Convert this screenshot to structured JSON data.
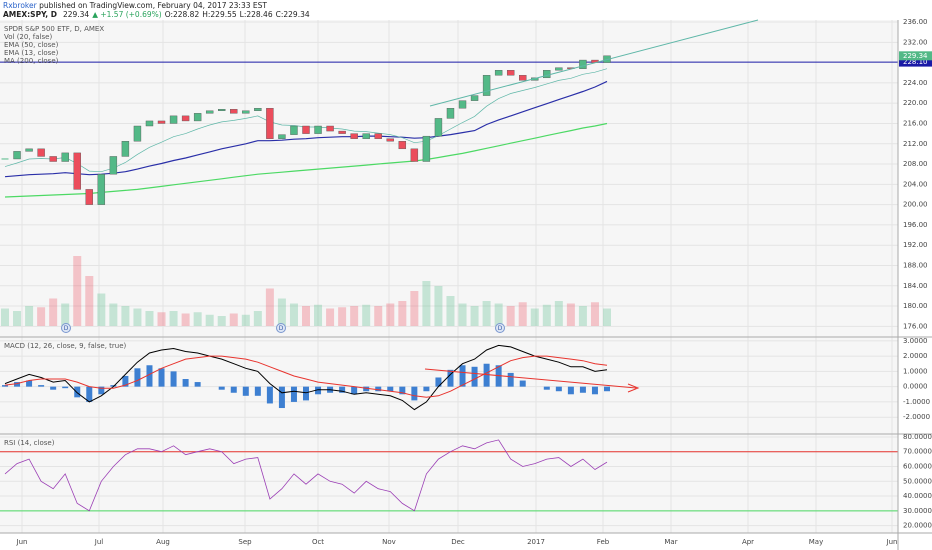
{
  "header": {
    "author": "Rxbroker",
    "published": " published on TradingView.com, February 04, 2017 23:33 EST",
    "symbol": "AMEX:SPY, D",
    "last": "229.34",
    "change": "▲ +1.57 (+0.69%)",
    "open": "O:228.82",
    "high": "H:229.55",
    "low": "L:228.46",
    "close": "C:229.34"
  },
  "months": [
    "Jun",
    "Jul",
    "Aug",
    "Sep",
    "Oct",
    "Nov",
    "Dec",
    "2017",
    "Feb",
    "Mar",
    "Apr",
    "May",
    "Jun"
  ],
  "chart_data": [
    {
      "type": "candlestick",
      "title": "SPDR S&P 500 ETF, D, AMEX",
      "close": [
        209.0,
        210.5,
        211.0,
        209.5,
        208.5,
        210.2,
        203.0,
        200.0,
        206.0,
        209.5,
        212.5,
        215.5,
        216.5,
        216.0,
        217.5,
        216.5,
        218.0,
        218.5,
        218.8,
        218.0,
        218.5,
        219.0,
        213.0,
        213.8,
        215.5,
        214.0,
        215.5,
        214.5,
        214.0,
        213.0,
        214.0,
        213.0,
        212.5,
        211.0,
        208.5,
        213.5,
        217.0,
        219.0,
        220.5,
        221.5,
        225.5,
        226.5,
        225.5,
        224.5,
        225.0,
        226.5,
        227.0,
        226.8,
        228.5,
        228.0,
        229.34
      ],
      "up_color": "#53b987",
      "down_color": "#eb4d5c",
      "volume": {
        "name": "Vol (20, false)",
        "values": [
          70,
          60,
          80,
          75,
          110,
          90,
          280,
          200,
          130,
          90,
          80,
          70,
          60,
          55,
          60,
          50,
          55,
          45,
          40,
          50,
          45,
          60,
          150,
          110,
          90,
          80,
          85,
          70,
          75,
          80,
          85,
          80,
          90,
          100,
          140,
          180,
          160,
          120,
          90,
          80,
          100,
          90,
          80,
          95,
          70,
          85,
          100,
          90,
          80,
          95,
          70
        ]
      },
      "indicators": [
        {
          "name": "EMA (50, close)",
          "color": "#2a2fa8",
          "values": [
            205.5,
            205.7,
            205.9,
            206.0,
            206.1,
            206.3,
            206.1,
            205.9,
            206.0,
            206.2,
            206.5,
            207.0,
            207.6,
            208.1,
            208.7,
            209.2,
            209.8,
            210.4,
            211.0,
            211.5,
            212.0,
            212.6,
            212.6,
            212.7,
            212.9,
            213.0,
            213.2,
            213.3,
            213.4,
            213.4,
            213.5,
            213.5,
            213.4,
            213.3,
            213.1,
            213.2,
            213.5,
            213.8,
            214.2,
            214.6,
            215.8,
            216.7,
            217.5,
            218.3,
            219.1,
            219.9,
            220.7,
            221.5,
            222.3,
            223.2,
            224.3
          ]
        },
        {
          "name": "EMA (13, close)",
          "color": "#5fb7a8",
          "values": [
            207.5,
            208.2,
            209.0,
            209.1,
            209.0,
            209.3,
            208.1,
            206.6,
            206.5,
            207.2,
            208.3,
            209.9,
            211.3,
            212.3,
            213.4,
            214.0,
            214.9,
            215.7,
            216.3,
            216.6,
            217.0,
            217.5,
            216.3,
            215.7,
            215.6,
            215.3,
            215.3,
            215.1,
            214.9,
            214.5,
            214.4,
            214.1,
            213.8,
            213.2,
            212.2,
            212.5,
            213.6,
            214.9,
            216.2,
            217.4,
            219.4,
            220.9,
            221.9,
            222.5,
            223.1,
            223.8,
            224.5,
            224.9,
            225.7,
            226.1,
            226.8
          ]
        },
        {
          "name": "MA (200, close)",
          "color": "#4cd964",
          "values": [
            201.5,
            201.6,
            201.7,
            201.8,
            201.9,
            202.0,
            202.1,
            202.2,
            202.4,
            202.6,
            202.8,
            203.0,
            203.3,
            203.6,
            203.9,
            204.2,
            204.5,
            204.8,
            205.1,
            205.4,
            205.7,
            206.0,
            206.2,
            206.4,
            206.6,
            206.8,
            207.0,
            207.2,
            207.4,
            207.6,
            207.8,
            208.0,
            208.2,
            208.4,
            208.6,
            208.9,
            209.3,
            209.7,
            210.1,
            210.6,
            211.1,
            211.6,
            212.1,
            212.6,
            213.1,
            213.6,
            214.1,
            214.6,
            215.1,
            215.5,
            216.0
          ]
        }
      ],
      "hline": {
        "value": 228.1,
        "label": "228.10",
        "color": "#1a1aa6"
      },
      "last_price": {
        "value": 229.34,
        "label": "229.34"
      },
      "events": [
        "D",
        "D",
        "D"
      ],
      "ylim": [
        173.9,
        236.4
      ],
      "yticks": [
        {
          "value": 236,
          "label": "236.00"
        },
        {
          "value": 232,
          "label": "232.00"
        },
        {
          "value": 224,
          "label": "224.00"
        },
        {
          "value": 220,
          "label": "220.00"
        },
        {
          "value": 216,
          "label": "216.00"
        },
        {
          "value": 212,
          "label": "212.00"
        },
        {
          "value": 208,
          "label": "208.00"
        },
        {
          "value": 204,
          "label": "204.00"
        },
        {
          "value": 200,
          "label": "200.00"
        },
        {
          "value": 196,
          "label": "196.00"
        },
        {
          "value": 192,
          "label": "192.00"
        },
        {
          "value": 188,
          "label": "188.00"
        },
        {
          "value": 184,
          "label": "184.00"
        },
        {
          "value": 180,
          "label": "180.00"
        },
        {
          "value": 176,
          "label": "176.00"
        }
      ],
      "grid": true
    },
    {
      "type": "macd",
      "title": "MACD (12, 26, close, 9, false, true)",
      "series": [
        {
          "name": "MACD",
          "color": "#000000",
          "values": [
            0.2,
            0.5,
            0.8,
            0.6,
            0.3,
            0.4,
            -0.4,
            -1.0,
            -0.6,
            0.0,
            0.8,
            1.6,
            2.2,
            2.4,
            2.5,
            2.3,
            2.2,
            2.0,
            1.8,
            1.5,
            1.2,
            1.0,
            0.2,
            -0.4,
            -0.3,
            -0.4,
            -0.2,
            -0.2,
            -0.3,
            -0.5,
            -0.4,
            -0.5,
            -0.6,
            -0.9,
            -1.5,
            -1.0,
            0.0,
            0.8,
            1.5,
            1.8,
            2.4,
            2.7,
            2.6,
            2.3,
            2.0,
            1.8,
            1.6,
            1.3,
            1.3,
            1.0,
            1.1
          ]
        },
        {
          "name": "Signal",
          "color": "#e8342e",
          "values": [
            0.1,
            0.2,
            0.4,
            0.5,
            0.5,
            0.5,
            0.3,
            0.0,
            -0.1,
            -0.1,
            0.1,
            0.4,
            0.8,
            1.2,
            1.5,
            1.8,
            1.9,
            2.0,
            2.0,
            1.9,
            1.8,
            1.6,
            1.3,
            1.0,
            0.7,
            0.5,
            0.3,
            0.2,
            0.1,
            0.0,
            -0.1,
            -0.2,
            -0.3,
            -0.4,
            -0.6,
            -0.7,
            -0.6,
            -0.3,
            0.1,
            0.5,
            0.9,
            1.3,
            1.7,
            1.9,
            2.0,
            2.0,
            1.9,
            1.8,
            1.7,
            1.5,
            1.4
          ]
        },
        {
          "name": "Histogram",
          "color": "#3d7fd1",
          "values": [
            0.1,
            0.3,
            0.4,
            0.1,
            -0.2,
            -0.1,
            -0.7,
            -1.0,
            -0.5,
            0.1,
            0.7,
            1.2,
            1.4,
            1.2,
            1.0,
            0.5,
            0.3,
            0.0,
            -0.2,
            -0.4,
            -0.6,
            -0.6,
            -1.1,
            -1.4,
            -1.0,
            -0.9,
            -0.5,
            -0.4,
            -0.4,
            -0.5,
            -0.3,
            -0.3,
            -0.3,
            -0.5,
            -0.9,
            -0.3,
            0.6,
            1.1,
            1.4,
            1.3,
            1.5,
            1.4,
            0.9,
            0.4,
            0.0,
            -0.2,
            -0.3,
            -0.5,
            -0.4,
            -0.5,
            -0.3
          ]
        }
      ],
      "ylim": [
        -3.1,
        3.25
      ],
      "yticks": [
        {
          "value": 3,
          "label": "3.0000"
        },
        {
          "value": 2,
          "label": "2.0000"
        },
        {
          "value": 1,
          "label": "1.0000"
        },
        {
          "value": 0,
          "label": "0.0000"
        },
        {
          "value": -1,
          "label": "-1.0000"
        },
        {
          "value": -2,
          "label": "-2.0000"
        }
      ],
      "grid": true
    },
    {
      "type": "rsi",
      "title": "RSI (14, close)",
      "color": "#9b3fb5",
      "values": [
        55,
        62,
        65,
        50,
        45,
        55,
        35,
        30,
        50,
        60,
        68,
        72,
        72,
        70,
        74,
        68,
        70,
        72,
        70,
        62,
        65,
        66,
        38,
        45,
        55,
        48,
        55,
        50,
        48,
        42,
        50,
        45,
        43,
        35,
        30,
        55,
        65,
        70,
        74,
        72,
        76,
        78,
        65,
        60,
        62,
        65,
        66,
        60,
        65,
        58,
        63
      ],
      "overbought": 70,
      "oversold": 30,
      "ylim": [
        15,
        82
      ],
      "yticks": [
        {
          "value": 80,
          "label": "80.0000"
        },
        {
          "value": 70,
          "label": "70.0000"
        },
        {
          "value": 60,
          "label": "60.0000"
        },
        {
          "value": 50,
          "label": "50.0000"
        },
        {
          "value": 40,
          "label": "40.0000"
        },
        {
          "value": 30,
          "label": "30.0000"
        },
        {
          "value": 20,
          "label": "20.0000"
        }
      ],
      "grid": true
    }
  ]
}
